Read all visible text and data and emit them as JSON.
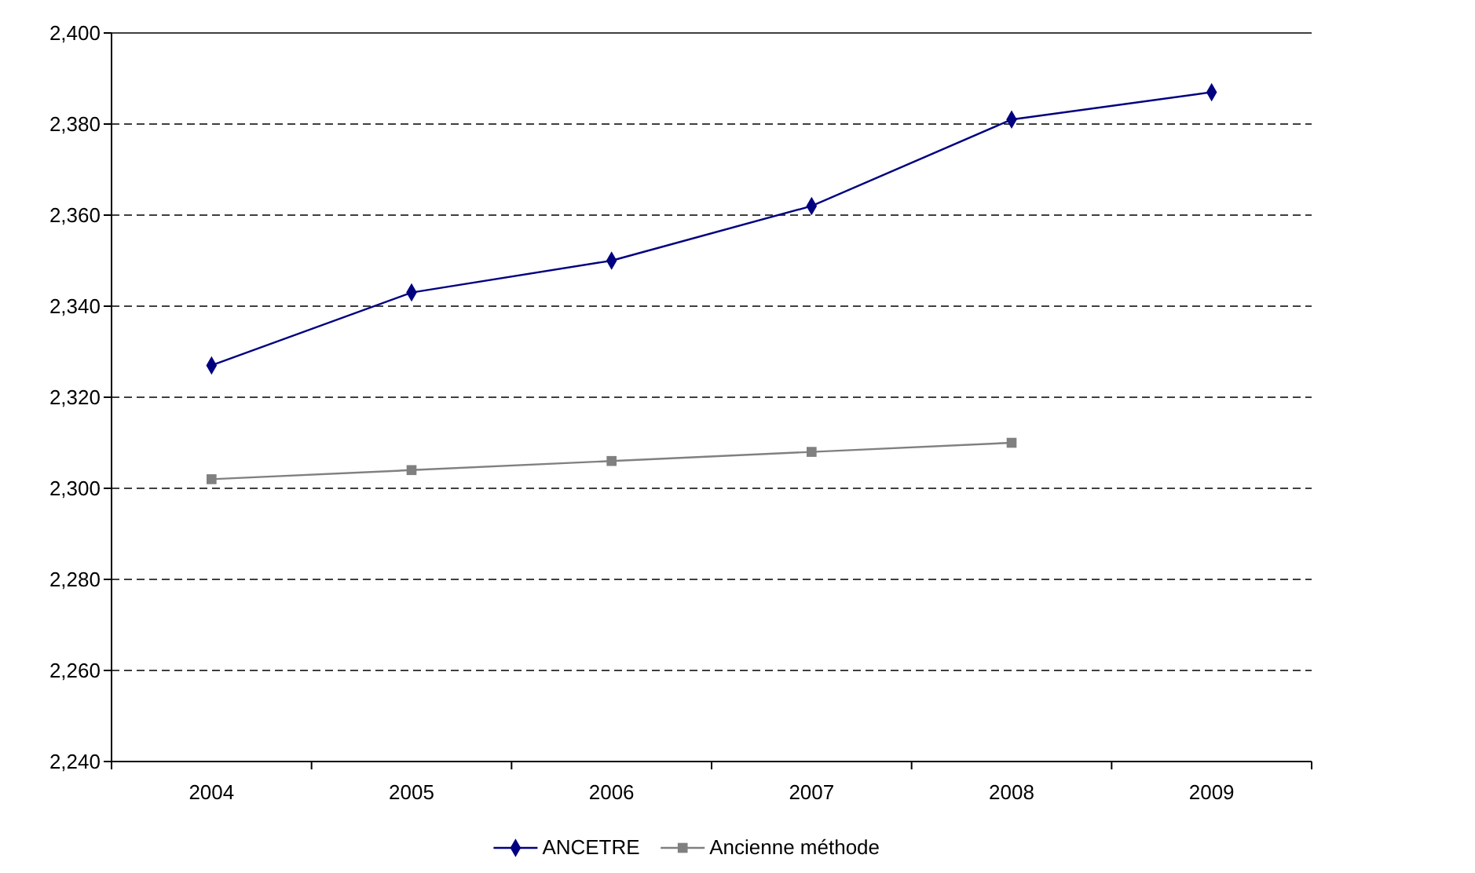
{
  "chart_data": {
    "type": "line",
    "categories": [
      "2004",
      "2005",
      "2006",
      "2007",
      "2008",
      "2009"
    ],
    "series": [
      {
        "name": "ANCETRE",
        "color": "#000080",
        "marker": "diamond",
        "values": [
          2327,
          2343,
          2350,
          2362,
          2381,
          2387
        ]
      },
      {
        "name": "Ancienne méthode",
        "color": "#808080",
        "marker": "square",
        "values": [
          2302,
          2304,
          2306,
          2308,
          2310,
          null
        ]
      }
    ],
    "ylim": [
      2240,
      2400
    ],
    "yticks": [
      {
        "value": 2240,
        "label": "2,240"
      },
      {
        "value": 2260,
        "label": "2,260"
      },
      {
        "value": 2280,
        "label": "2,280"
      },
      {
        "value": 2300,
        "label": "2,300"
      },
      {
        "value": 2320,
        "label": "2,320"
      },
      {
        "value": 2340,
        "label": "2,340"
      },
      {
        "value": 2360,
        "label": "2,360"
      },
      {
        "value": 2380,
        "label": "2,380"
      },
      {
        "value": 2400,
        "label": "2,400"
      }
    ],
    "grid": "y",
    "legend": "bottom",
    "line_style": "solid"
  }
}
